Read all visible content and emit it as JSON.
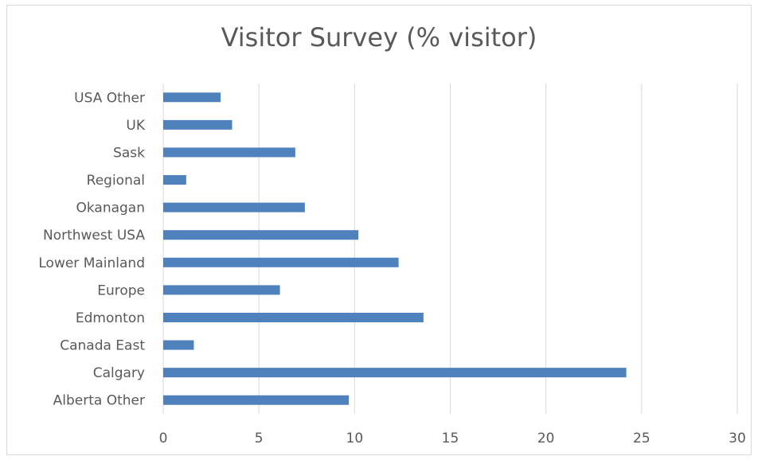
{
  "chart_data": {
    "type": "bar",
    "orientation": "horizontal",
    "title": "Visitor Survey (% visitor)",
    "xlabel": "",
    "ylabel": "",
    "categories": [
      "Alberta Other",
      "Calgary",
      "Canada East",
      "Edmonton",
      "Europe",
      "Lower Mainland",
      "Northwest USA",
      "Okanagan",
      "Regional",
      "Sask",
      "UK",
      "USA Other"
    ],
    "values": [
      9.7,
      24.2,
      1.6,
      13.6,
      6.1,
      12.3,
      10.2,
      7.4,
      1.2,
      6.9,
      3.6,
      3.0
    ],
    "xlim": [
      0,
      30
    ],
    "xticks": [
      0,
      5,
      10,
      15,
      20,
      25,
      30
    ],
    "grid": true,
    "legend": "none",
    "bar_color": "#4f81bd",
    "grid_color": "#d9d9d9"
  }
}
